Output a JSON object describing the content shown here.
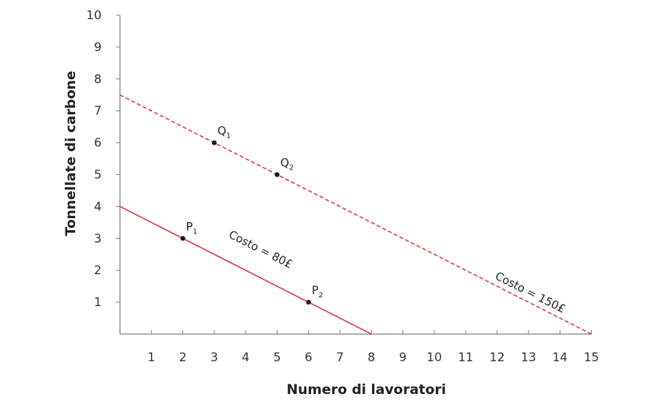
{
  "chart_data": {
    "type": "line",
    "title": "",
    "xlabel": "Numero di lavoratori",
    "ylabel": "Tonnellate di carbone",
    "xlim": [
      0,
      15
    ],
    "ylim": [
      0,
      10
    ],
    "x_ticks": [
      1,
      2,
      3,
      4,
      5,
      6,
      7,
      8,
      9,
      10,
      11,
      12,
      13,
      14,
      15
    ],
    "y_ticks": [
      1,
      2,
      3,
      4,
      5,
      6,
      7,
      8,
      9,
      10
    ],
    "grid": false,
    "series": [
      {
        "name": "Costo = 80£",
        "style": "solid",
        "color": "#d9303a",
        "points": [
          [
            0,
            4
          ],
          [
            8,
            0
          ]
        ],
        "label_position": [
          6,
          2
        ]
      },
      {
        "name": "Costo = 150£",
        "style": "dashed",
        "color": "#d9303a",
        "points": [
          [
            0,
            7.5
          ],
          [
            15,
            0
          ]
        ],
        "label_position": [
          13,
          1.2
        ]
      }
    ],
    "annotated_points": [
      {
        "label": "P",
        "sub": "1",
        "x": 2,
        "y": 3
      },
      {
        "label": "P",
        "sub": "2",
        "x": 6,
        "y": 1
      },
      {
        "label": "Q",
        "sub": "1",
        "x": 3,
        "y": 6
      },
      {
        "label": "Q",
        "sub": "2",
        "x": 5,
        "y": 5
      }
    ]
  },
  "colors": {
    "axis": "#888888",
    "line": "#d9303a",
    "point": "#1a1a1a"
  }
}
